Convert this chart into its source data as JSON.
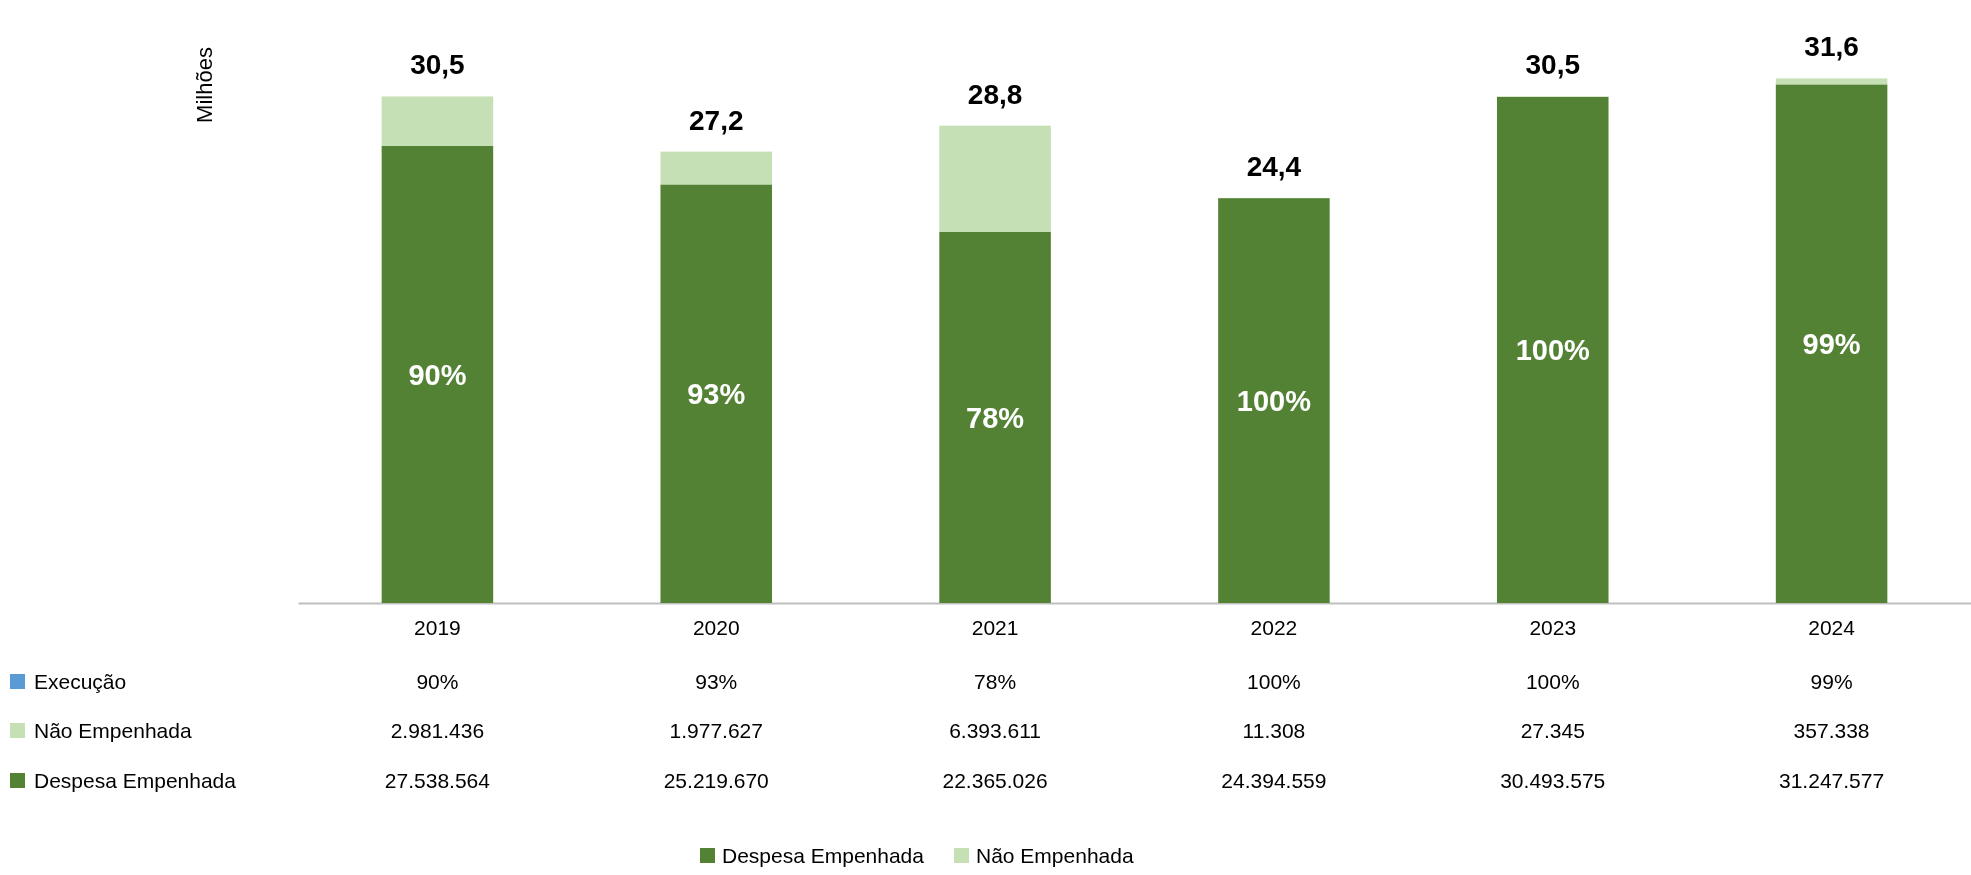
{
  "chart_data": {
    "type": "bar",
    "stacked": true,
    "ylabel": "Milhões",
    "tick_labels": "x",
    "legend": "bottom",
    "categories": [
      "2019",
      "2020",
      "2021",
      "2022",
      "2023",
      "2024"
    ],
    "series": [
      {
        "name": "Despesa Empenhada",
        "color": "#548235",
        "values": [
          27538564,
          25219670,
          22365026,
          24394559,
          30493575,
          31247577
        ],
        "value_labels": [
          "27.538.564",
          "25.219.670",
          "22.365.026",
          "24.394.559",
          "30.493.575",
          "31.247.577"
        ]
      },
      {
        "name": "Não Empenhada",
        "color": "#c5e0b4",
        "values": [
          2981436,
          1977627,
          6393611,
          11308,
          27345,
          357338
        ],
        "value_labels": [
          "2.981.436",
          "1.977.627",
          "6.393.611",
          "11.308",
          "27.345",
          "357.338"
        ]
      }
    ],
    "annotations": [
      "Execução",
      "90%",
      "93%",
      "78%",
      "100%",
      "100%",
      "99%",
      {
        "text": "30,5",
        "x": "2019",
        "y": 30520000
      },
      {
        "text": "27,2",
        "x": "2020",
        "y": 27197297
      },
      {
        "text": "28,8",
        "x": "2021",
        "y": 28758637
      },
      {
        "text": "24,4",
        "x": "2022",
        "y": 24405867
      },
      {
        "text": "30,5",
        "x": "2023",
        "y": 30520920
      },
      {
        "text": "31,6",
        "x": "2024",
        "y": 31604915
      }
    ]
  }
}
